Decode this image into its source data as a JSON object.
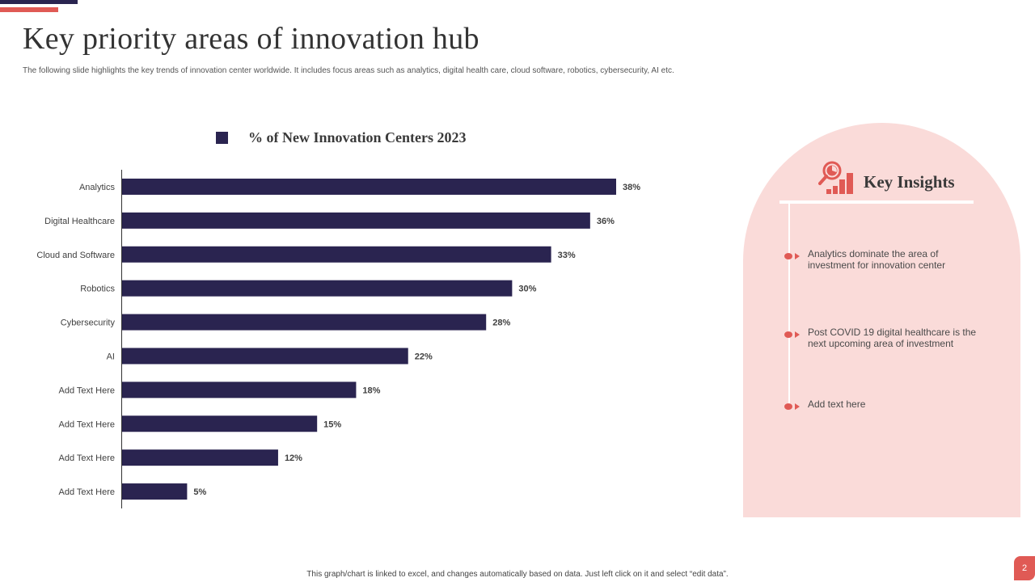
{
  "slide": {
    "title": "Key priority areas of innovation hub",
    "subtitle": "The following slide highlights the key trends of innovation center worldwide. It includes focus areas such as analytics, digital health care, cloud software, robotics, cybersecurity, AI etc.",
    "footer": "This graph/chart is linked to excel, and changes automatically based on data. Just left click on it and select “edit data”.",
    "page_number": "2"
  },
  "colors": {
    "bar": "#2a2450",
    "accent": "#e05a55",
    "panel_bg": "#fadbd9"
  },
  "chart_data": {
    "type": "bar",
    "orientation": "horizontal",
    "title": "",
    "legend": [
      "% of New Innovation Centers 2023"
    ],
    "legend_position": "top",
    "categories": [
      "Analytics",
      "Digital Healthcare",
      "Cloud and Software",
      "Robotics",
      "Cybersecurity",
      "AI",
      "Add Text Here",
      "Add Text Here",
      "Add Text Here",
      "Add Text Here"
    ],
    "series": [
      {
        "name": "% of New Innovation Centers 2023",
        "values": [
          38,
          36,
          33,
          30,
          28,
          22,
          18,
          15,
          12,
          5
        ]
      }
    ],
    "data_labels": [
      "38%",
      "36%",
      "33%",
      "30%",
      "28%",
      "22%",
      "18%",
      "15%",
      "12%",
      "5%"
    ],
    "xlabel": "",
    "ylabel": "",
    "xlim": [
      0,
      38
    ],
    "grid": false
  },
  "insights": {
    "title": "Key Insights",
    "icon": "analytics-chart-magnifier-icon",
    "items": [
      "Analytics dominate the area of investment for innovation center",
      "Post COVID 19 digital healthcare is the next upcoming area of investment",
      "Add text here"
    ]
  }
}
